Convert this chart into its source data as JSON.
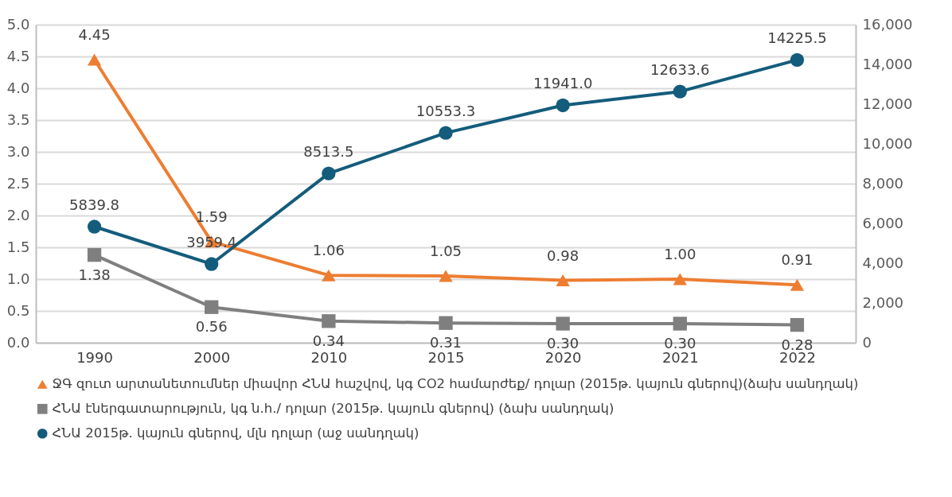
{
  "chart_data": {
    "type": "line",
    "categories": [
      "1990",
      "2000",
      "2010",
      "2015",
      "2020",
      "2021",
      "2022"
    ],
    "series": [
      {
        "name": "ՋԳ զուտ արտանետումներ միավոր ՀՆԱ հաշվով, կգ CO2 համարժեք/ դոլար (2015թ. կայուն գներով)(ձախ սանդղակ)",
        "color": "#ed7d31",
        "marker": "triangle",
        "values": [
          4.45,
          1.59,
          1.06,
          1.05,
          0.98,
          1.0,
          0.91
        ],
        "value_labels": [
          "4.45",
          "1.59",
          "1.06",
          "1.05",
          "0.98",
          "1.00",
          "0.91"
        ]
      },
      {
        "name": "ՀՆԱ էներգատարություն, կգ ն.հ./ դոլար (2015թ. կայուն գներով) (ձախ սանդղակ)",
        "color": "#7f7f7f",
        "marker": "square",
        "values": [
          1.38,
          0.56,
          0.34,
          0.31,
          0.3,
          0.3,
          0.28
        ],
        "value_labels": [
          "1.38",
          "0.56",
          "0.34",
          "0.31",
          "0.30",
          "0.30",
          "0.28"
        ]
      },
      {
        "name": "ՀՆԱ 2015թ. կայուն գներով, մլն դոլար (աջ սանդղակ)",
        "color": "#145c7c",
        "marker": "circle",
        "axis": "y2",
        "values": [
          5839.8,
          3959.4,
          8513.5,
          10553.3,
          11941.0,
          12633.6,
          14225.5
        ],
        "value_labels": [
          "5839.8",
          "3959.4",
          "8513.5",
          "10553.3",
          "11941.0",
          "12633.6",
          "14225.5"
        ]
      }
    ],
    "ylim": [
      0,
      5
    ],
    "yticks": [
      {
        "value": 0,
        "label": "0.0"
      },
      {
        "value": 0.5,
        "label": "0.5"
      },
      {
        "value": 1,
        "label": "1.0"
      },
      {
        "value": 1.5,
        "label": "1.5"
      },
      {
        "value": 2,
        "label": "2.0"
      },
      {
        "value": 2.5,
        "label": "2.5"
      },
      {
        "value": 3,
        "label": "3.0"
      },
      {
        "value": 3.5,
        "label": "3.5"
      },
      {
        "value": 4,
        "label": "4.0"
      },
      {
        "value": 4.5,
        "label": "4.5"
      },
      {
        "value": 5,
        "label": "5.0"
      }
    ],
    "y2lim": [
      0,
      16000
    ],
    "y2ticks": [
      0,
      {
        "value": 2000,
        "label": "2,000"
      },
      {
        "value": 4000,
        "label": "4,000"
      },
      {
        "value": 6000,
        "label": "6,000"
      },
      {
        "value": 8000,
        "label": "8,000"
      },
      {
        "value": 10000,
        "label": "10,000"
      },
      {
        "value": 12000,
        "label": "12,000"
      },
      {
        "value": 14000,
        "label": "14,000"
      },
      {
        "value": 16000,
        "label": "16,000"
      }
    ],
    "grid": "y",
    "legend": "bottom",
    "line_style": "solid"
  }
}
